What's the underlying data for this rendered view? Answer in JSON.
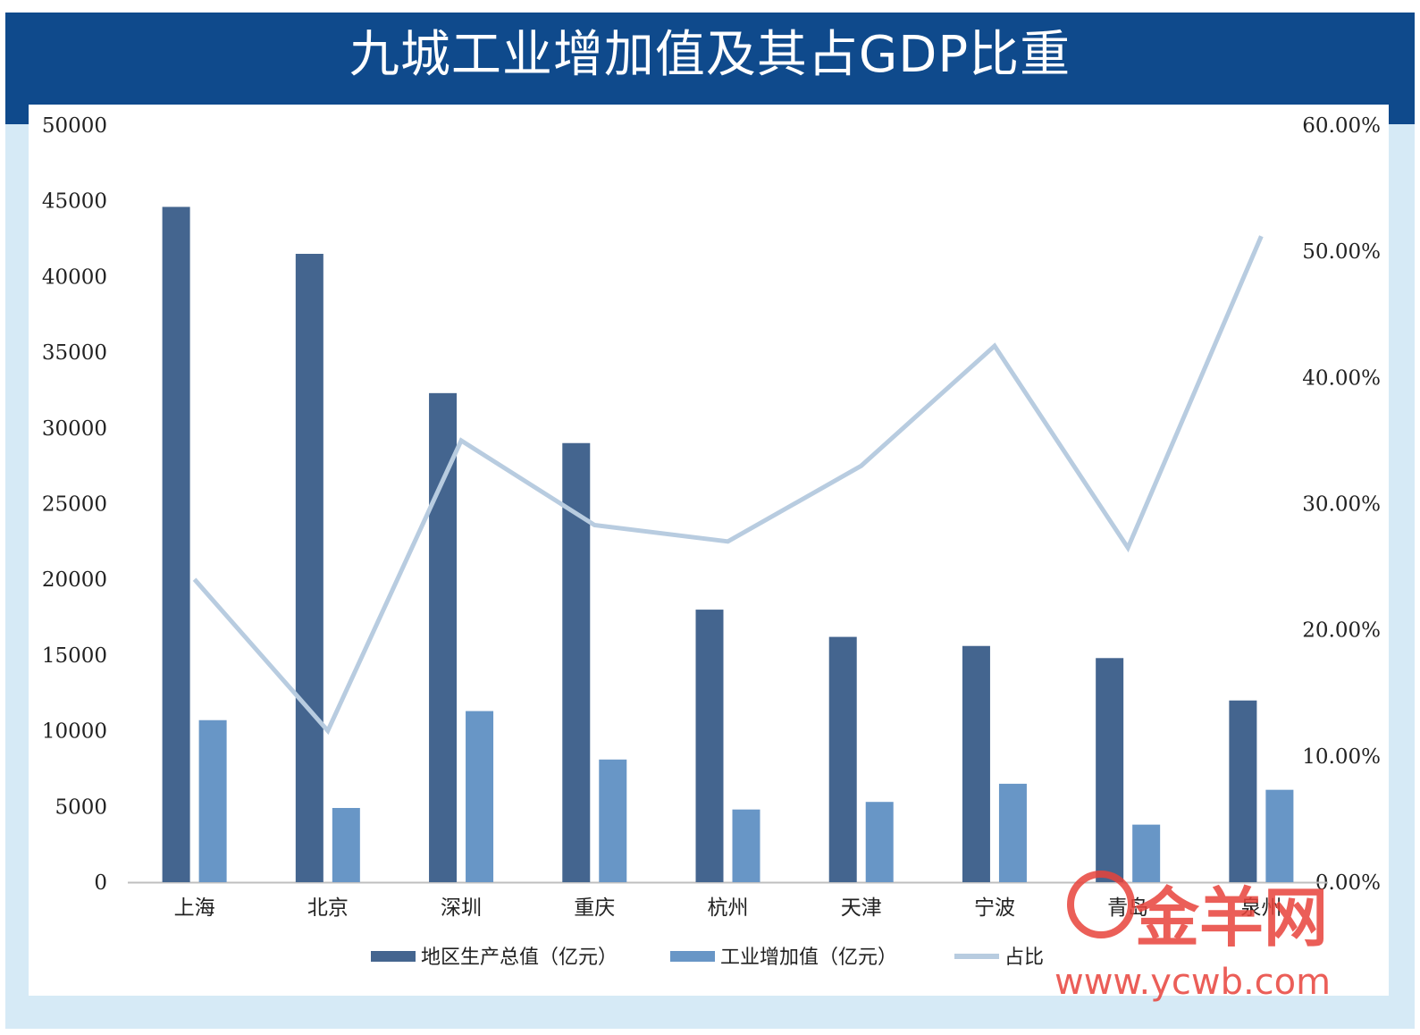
{
  "chart_data": {
    "type": "bar",
    "title": "九城工业增加值及其占GDP比重",
    "categories": [
      "上海",
      "北京",
      "深圳",
      "重庆",
      "杭州",
      "天津",
      "宁波",
      "青岛",
      "泉州"
    ],
    "series": [
      {
        "name": "地区生产总值（亿元）",
        "type": "bar",
        "axis": "left",
        "color": "#44658f",
        "values": [
          44600,
          41500,
          32300,
          29000,
          18000,
          16200,
          15600,
          14800,
          12000
        ]
      },
      {
        "name": "工业增加值（亿元）",
        "type": "bar",
        "axis": "left",
        "color": "#6896c6",
        "values": [
          10700,
          4900,
          11300,
          8100,
          4800,
          5300,
          6500,
          3800,
          6100
        ]
      },
      {
        "name": "占比",
        "type": "line",
        "axis": "right",
        "color": "#b8cce0",
        "values": [
          0.24,
          0.12,
          0.35,
          0.283,
          0.27,
          0.33,
          0.425,
          0.265,
          0.512
        ]
      }
    ],
    "y_left": {
      "ylim": [
        0,
        50000
      ],
      "ticks": [
        "0",
        "5000",
        "10000",
        "15000",
        "20000",
        "25000",
        "30000",
        "35000",
        "40000",
        "45000",
        "50000"
      ]
    },
    "y_right": {
      "ylim": [
        0,
        0.6
      ],
      "ticks": [
        "0.00%",
        "10.00%",
        "20.00%",
        "30.00%",
        "40.00%",
        "50.00%",
        "60.00%"
      ]
    },
    "legend": "bottom",
    "grid": false
  },
  "watermark": {
    "logo_text": "金羊网",
    "url": "www.ycwb.com"
  }
}
